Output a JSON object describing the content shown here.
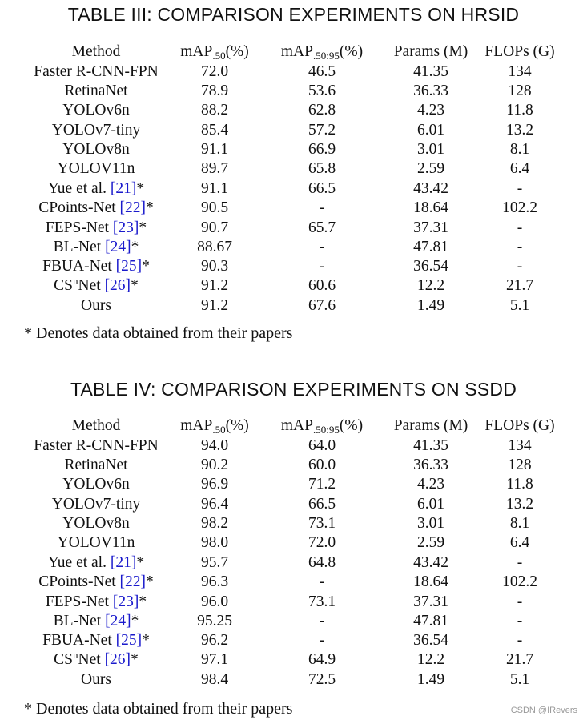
{
  "tables": [
    {
      "caption": "TABLE III: COMPARISON EXPERIMENTS ON HRSID",
      "header": {
        "method": "Method",
        "map50_base": "mAP",
        "map50_sub": ".50",
        "map50_unit": "(%)",
        "map5095_base": "mAP",
        "map5095_sub": ".50:95",
        "map5095_unit": "(%)",
        "params": "Params (M)",
        "flops": "FLOPs (G)"
      },
      "rows": [
        {
          "method": "Faster R-CNN-FPN",
          "map50": "72.0",
          "map5095": "46.5",
          "params": "41.35",
          "flops": "134"
        },
        {
          "method": "RetinaNet",
          "map50": "78.9",
          "map5095": "53.6",
          "params": "36.33",
          "flops": "128"
        },
        {
          "method": "YOLOv6n",
          "map50": "88.2",
          "map5095": "62.8",
          "params": "4.23",
          "flops": "11.8"
        },
        {
          "method": "YOLOv7-tiny",
          "map50": "85.4",
          "map5095": "57.2",
          "params": "6.01",
          "flops": "13.2"
        },
        {
          "method": "YOLOv8n",
          "map50": "91.1",
          "map5095": "66.9",
          "params": "3.01",
          "flops": "8.1"
        },
        {
          "method": "YOLOV11n",
          "map50": "89.7",
          "map5095": "65.8",
          "params": "2.59",
          "flops": "6.4"
        },
        {
          "method": "Yue et al.",
          "ref": "[21]",
          "star": "*",
          "map50": "91.1",
          "map5095": "66.5",
          "params": "43.42",
          "flops": "-"
        },
        {
          "method": "CPoints-Net",
          "ref": "[22]",
          "star": "*",
          "map50": "90.5",
          "map5095": "-",
          "params": "18.64",
          "flops": "102.2"
        },
        {
          "method": "FEPS-Net",
          "ref": "[23]",
          "star": "*",
          "map50": "90.7",
          "map5095": "65.7",
          "params": "37.31",
          "flops": "-"
        },
        {
          "method": "BL-Net",
          "ref": "[24]",
          "star": "*",
          "map50": "88.67",
          "map5095": "-",
          "params": "47.81",
          "flops": "-"
        },
        {
          "method": "FBUA-Net",
          "ref": "[25]",
          "star": "*",
          "map50": "90.3",
          "map5095": "-",
          "params": "36.54",
          "flops": "-"
        },
        {
          "method": "CS",
          "method_sup": "n",
          "method_tail": "Net",
          "ref": "[26]",
          "star": "*",
          "map50": "91.2",
          "map5095": "60.6",
          "params": "12.2",
          "flops": "21.7"
        },
        {
          "method": "Ours",
          "map50": "91.2",
          "map5095": "67.6",
          "params": "1.49",
          "flops": "5.1"
        }
      ],
      "footnote": "* Denotes data obtained from their papers"
    },
    {
      "caption": "TABLE IV: COMPARISON EXPERIMENTS ON SSDD",
      "header": {
        "method": "Method",
        "map50_base": "mAP",
        "map50_sub": ".50",
        "map50_unit": "(%)",
        "map5095_base": "mAP",
        "map5095_sub": ".50:95",
        "map5095_unit": "(%)",
        "params": "Params (M)",
        "flops": "FLOPs (G)"
      },
      "rows": [
        {
          "method": "Faster R-CNN-FPN",
          "map50": "94.0",
          "map5095": "64.0",
          "params": "41.35",
          "flops": "134"
        },
        {
          "method": "RetinaNet",
          "map50": "90.2",
          "map5095": "60.0",
          "params": "36.33",
          "flops": "128"
        },
        {
          "method": "YOLOv6n",
          "map50": "96.9",
          "map5095": "71.2",
          "params": "4.23",
          "flops": "11.8"
        },
        {
          "method": "YOLOv7-tiny",
          "map50": "96.4",
          "map5095": "66.5",
          "params": "6.01",
          "flops": "13.2"
        },
        {
          "method": "YOLOv8n",
          "map50": "98.2",
          "map5095": "73.1",
          "params": "3.01",
          "flops": "8.1"
        },
        {
          "method": "YOLOV11n",
          "map50": "98.0",
          "map5095": "72.0",
          "params": "2.59",
          "flops": "6.4"
        },
        {
          "method": "Yue et al.",
          "ref": "[21]",
          "star": "*",
          "map50": "95.7",
          "map5095": "64.8",
          "params": "43.42",
          "flops": "-"
        },
        {
          "method": "CPoints-Net",
          "ref": "[22]",
          "star": "*",
          "map50": "96.3",
          "map5095": "-",
          "params": "18.64",
          "flops": "102.2"
        },
        {
          "method": "FEPS-Net",
          "ref": "[23]",
          "star": "*",
          "map50": "96.0",
          "map5095": "73.1",
          "params": "37.31",
          "flops": "-"
        },
        {
          "method": "BL-Net",
          "ref": "[24]",
          "star": "*",
          "map50": "95.25",
          "map5095": "-",
          "params": "47.81",
          "flops": "-"
        },
        {
          "method": "FBUA-Net",
          "ref": "[25]",
          "star": "*",
          "map50": "96.2",
          "map5095": "-",
          "params": "36.54",
          "flops": "-"
        },
        {
          "method": "CS",
          "method_sup": "n",
          "method_tail": "Net",
          "ref": "[26]",
          "star": "*",
          "map50": "97.1",
          "map5095": "64.9",
          "params": "12.2",
          "flops": "21.7"
        },
        {
          "method": "Ours",
          "map50": "98.4",
          "map5095": "72.5",
          "params": "1.49",
          "flops": "5.1"
        }
      ],
      "footnote": "* Denotes data obtained from their papers"
    }
  ],
  "watermark": "CSDN @IRevers"
}
